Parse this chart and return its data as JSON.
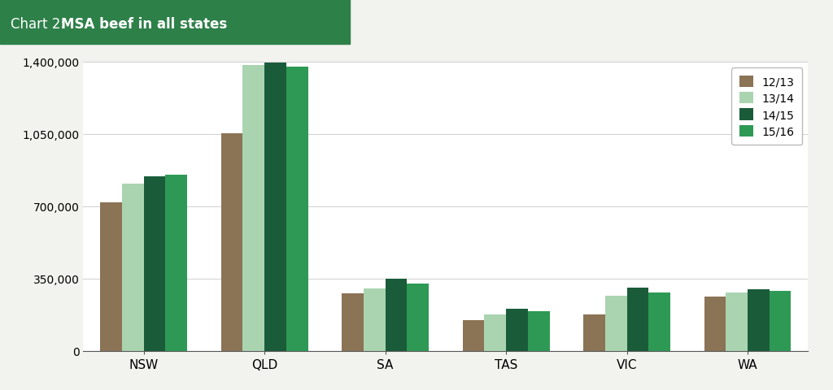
{
  "title_plain": "Chart 2: ",
  "title_bold": "MSA beef in all states",
  "title_bg_color": "#2e8049",
  "title_text_color": "#ffffff",
  "categories": [
    "NSW",
    "QLD",
    "SA",
    "TAS",
    "VIC",
    "WA"
  ],
  "series": {
    "12/13": [
      720000,
      1055000,
      278000,
      148000,
      178000,
      262000
    ],
    "13/14": [
      810000,
      1385000,
      302000,
      178000,
      268000,
      282000
    ],
    "14/15": [
      845000,
      1395000,
      348000,
      205000,
      305000,
      298000
    ],
    "15/16": [
      855000,
      1378000,
      325000,
      192000,
      282000,
      292000
    ]
  },
  "colors": {
    "12/13": "#8B7355",
    "13/14": "#aad4b0",
    "14/15": "#1a5c3a",
    "15/16": "#2e9955"
  },
  "ylim": [
    0,
    1400000
  ],
  "yticks": [
    0,
    350000,
    700000,
    1050000,
    1400000
  ],
  "ytick_labels": [
    "0",
    "350,000",
    "700,000",
    "1,050,000",
    "1,400,000"
  ],
  "background_color": "#f2f2ee",
  "plot_bg_color": "#ffffff",
  "grid_color": "#d0d0d0",
  "bar_width": 0.18,
  "legend_position": "upper right"
}
